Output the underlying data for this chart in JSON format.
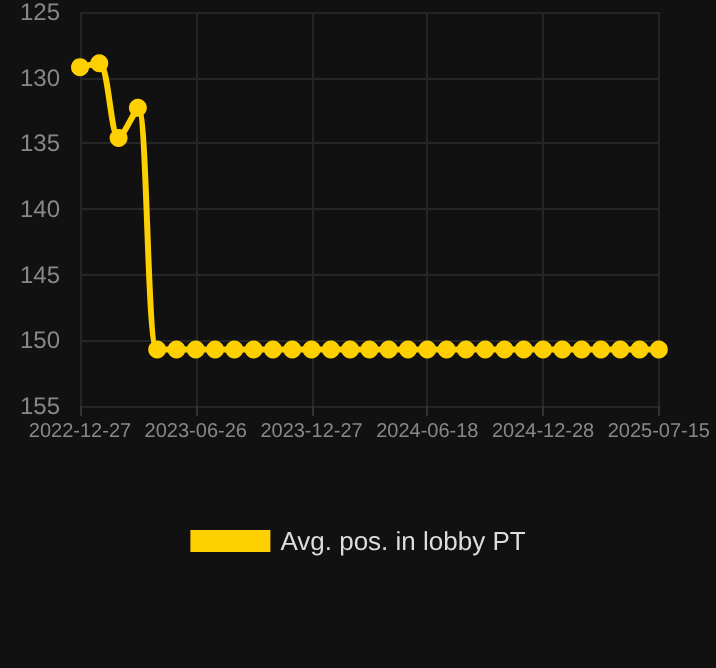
{
  "chart_data": {
    "type": "line",
    "categories": [
      "2022-12-27",
      null,
      null,
      null,
      null,
      null,
      "2023-06-26",
      null,
      null,
      null,
      null,
      null,
      "2023-12-27",
      null,
      null,
      null,
      null,
      null,
      "2024-06-18",
      null,
      null,
      null,
      null,
      null,
      "2024-12-28",
      null,
      null,
      null,
      null,
      null,
      "2025-07-15"
    ],
    "series": [
      {
        "name": "Avg. pos. in lobby PT",
        "color": "#ffd000",
        "values": [
          129.2,
          128.9,
          134.6,
          132.3,
          150.7,
          150.7,
          150.7,
          150.7,
          150.7,
          150.7,
          150.7,
          150.7,
          150.7,
          150.7,
          150.7,
          150.7,
          150.7,
          150.7,
          150.7,
          150.7,
          150.7,
          150.7,
          150.7,
          150.7,
          150.7,
          150.7,
          150.7,
          150.7,
          150.7,
          150.7,
          150.7
        ]
      }
    ],
    "ylim": [
      155,
      125
    ],
    "yticks": [
      125,
      130,
      135,
      140,
      145,
      150,
      155
    ],
    "grid": true,
    "legend": "bottom",
    "marker": "circle",
    "line_style": "solid"
  }
}
